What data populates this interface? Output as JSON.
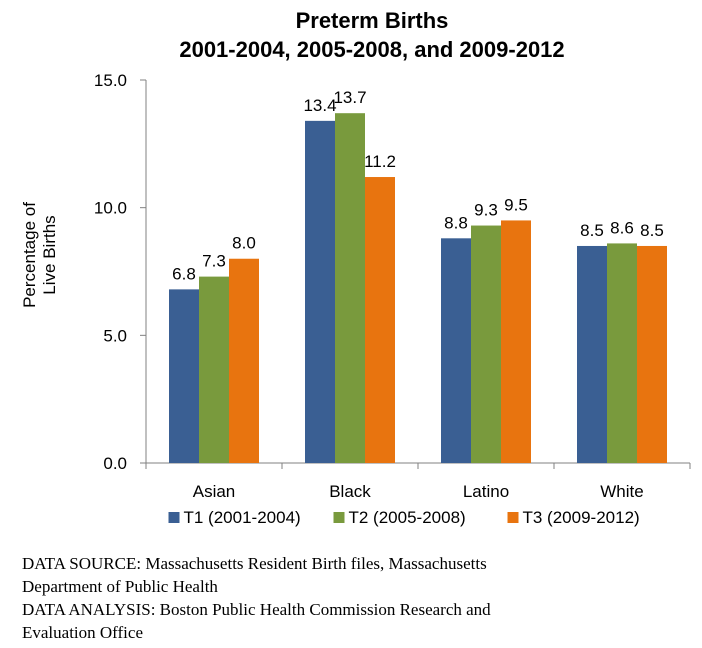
{
  "chart_data": {
    "type": "bar",
    "title_lines": [
      "Preterm Births",
      "2001-2004, 2005-2008, and 2009-2012"
    ],
    "ylabel_lines": [
      "Percentage of",
      "Live Births"
    ],
    "xlabel": "",
    "categories": [
      "Asian",
      "Black",
      "Latino",
      "White"
    ],
    "series": [
      {
        "name": "T1 (2001-2004)",
        "color": "#3A5F93",
        "values": [
          6.8,
          13.4,
          8.8,
          8.5
        ]
      },
      {
        "name": "T2 (2005-2008)",
        "color": "#799A3D",
        "values": [
          7.3,
          13.7,
          9.3,
          8.6
        ]
      },
      {
        "name": "T3 (2009-2012)",
        "color": "#E8740F",
        "values": [
          8.0,
          11.2,
          9.5,
          8.5
        ]
      }
    ],
    "ylim": [
      0,
      15
    ],
    "yticks": [
      0,
      5,
      10,
      15
    ],
    "ytick_labels": [
      "0.0",
      "5.0",
      "10.0",
      "15.0"
    ],
    "grid": false,
    "legend_position": "bottom"
  },
  "footer": {
    "source_line1": "DATA SOURCE: Massachusetts Resident Birth files, Massachusetts",
    "source_line2": "Department of Public Health",
    "analysis_line1": "DATA ANALYSIS:  Boston Public Health Commission Research and",
    "analysis_line2": "Evaluation Office"
  }
}
